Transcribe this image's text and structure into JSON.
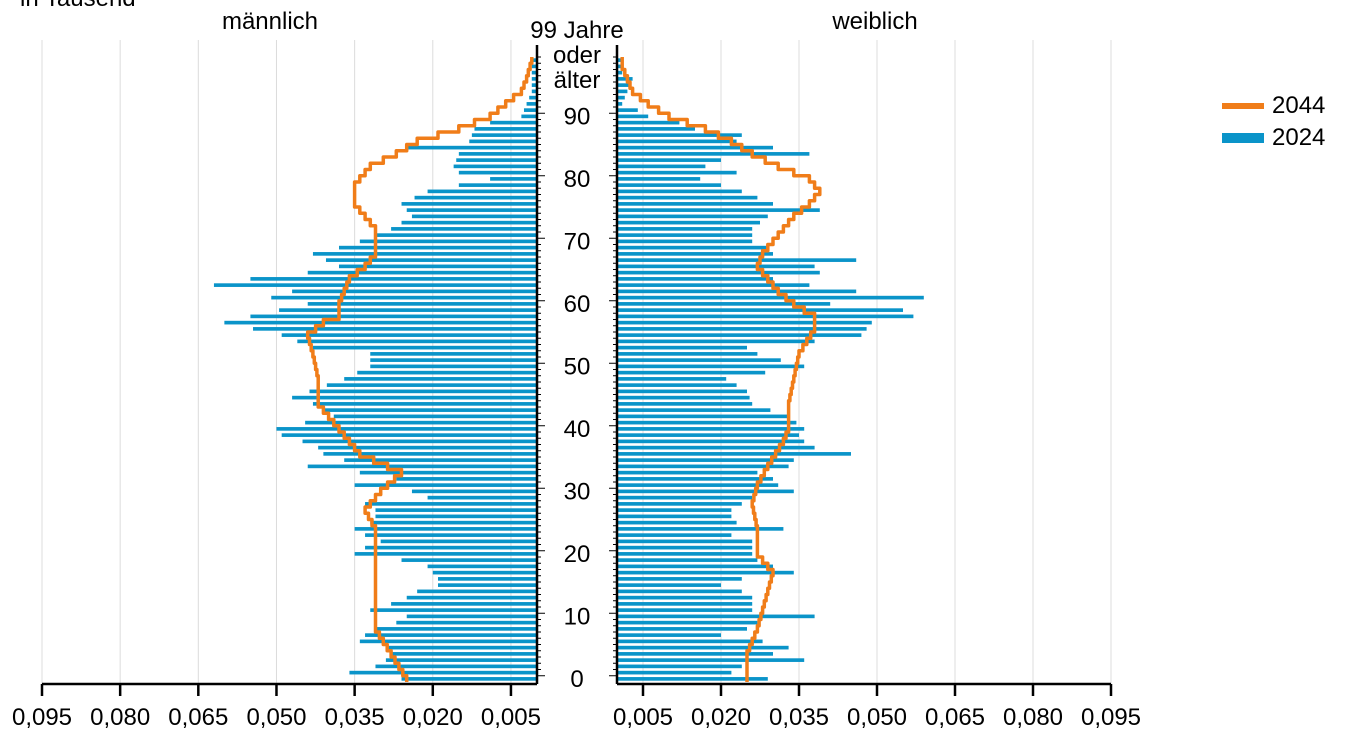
{
  "chart_data": {
    "type": "population_pyramid",
    "unit_label": "in Tausend",
    "left_title": "männlich",
    "right_title": "weiblich",
    "age_top_label": [
      "99 Jahre",
      "oder",
      "älter"
    ],
    "age_ticks": [
      "0",
      "10",
      "20",
      "30",
      "40",
      "50",
      "60",
      "70",
      "80",
      "90"
    ],
    "x_ticks": [
      "0,005",
      "0,020",
      "0,035",
      "0,050",
      "0,065",
      "0,080",
      "0,095"
    ],
    "x_tick_values": [
      0.005,
      0.02,
      0.035,
      0.05,
      0.065,
      0.08,
      0.095
    ],
    "xlim": [
      0,
      0.095
    ],
    "series": [
      {
        "name": "2024",
        "color": "#0a94c9",
        "style": "bars",
        "male_anchors": [
          [
            0,
            0.026
          ],
          [
            1,
            0.036
          ],
          [
            2,
            0.031
          ],
          [
            3,
            0.029
          ],
          [
            4,
            0.028
          ],
          [
            5,
            0.029
          ],
          [
            6,
            0.034
          ],
          [
            7,
            0.033
          ],
          [
            8,
            0.031
          ],
          [
            9,
            0.027
          ],
          [
            10,
            0.025
          ],
          [
            11,
            0.032
          ],
          [
            12,
            0.028
          ],
          [
            13,
            0.025
          ],
          [
            14,
            0.023
          ],
          [
            15,
            0.019
          ],
          [
            16,
            0.019
          ],
          [
            17,
            0.02
          ],
          [
            18,
            0.021
          ],
          [
            19,
            0.026
          ],
          [
            20,
            0.035
          ],
          [
            21,
            0.033
          ],
          [
            22,
            0.03
          ],
          [
            23,
            0.033
          ],
          [
            24,
            0.035
          ],
          [
            25,
            0.032
          ],
          [
            26,
            0.031
          ],
          [
            27,
            0.031
          ],
          [
            28,
            0.033
          ],
          [
            29,
            0.021
          ],
          [
            30,
            0.024
          ],
          [
            31,
            0.035
          ],
          [
            32,
            0.027
          ],
          [
            33,
            0.034
          ],
          [
            34,
            0.044
          ],
          [
            35,
            0.037
          ],
          [
            36,
            0.041
          ],
          [
            37,
            0.042
          ],
          [
            38,
            0.045
          ],
          [
            39,
            0.049
          ],
          [
            40,
            0.05
          ],
          [
            42,
            0.039
          ],
          [
            44,
            0.043
          ],
          [
            45,
            0.047
          ],
          [
            48,
            0.037
          ],
          [
            50,
            0.032
          ],
          [
            52,
            0.032
          ],
          [
            53,
            0.043
          ],
          [
            55,
            0.049
          ],
          [
            57,
            0.06
          ],
          [
            58,
            0.055
          ],
          [
            60,
            0.044
          ],
          [
            61,
            0.051
          ],
          [
            62,
            0.047
          ],
          [
            63,
            0.062
          ],
          [
            64,
            0.055
          ],
          [
            65,
            0.044
          ],
          [
            66,
            0.038
          ],
          [
            68,
            0.043
          ],
          [
            69,
            0.038
          ],
          [
            70,
            0.034
          ],
          [
            72,
            0.028
          ],
          [
            74,
            0.024
          ],
          [
            76,
            0.026
          ],
          [
            78,
            0.021
          ],
          [
            80,
            0.009
          ],
          [
            81,
            0.015
          ],
          [
            82,
            0.016
          ],
          [
            84,
            0.015
          ],
          [
            85,
            0.025
          ],
          [
            86,
            0.013
          ],
          [
            88,
            0.012
          ],
          [
            89,
            0.009
          ],
          [
            90,
            0.003
          ],
          [
            92,
            0.002
          ],
          [
            94,
            0.001
          ],
          [
            96,
            0.001
          ],
          [
            97,
            0.001
          ],
          [
            99,
            0.001
          ]
        ],
        "female_anchors": [
          [
            0,
            0.029
          ],
          [
            1,
            0.022
          ],
          [
            2,
            0.024
          ],
          [
            3,
            0.036
          ],
          [
            4,
            0.03
          ],
          [
            5,
            0.033
          ],
          [
            6,
            0.028
          ],
          [
            7,
            0.02
          ],
          [
            8,
            0.025
          ],
          [
            9,
            0.027
          ],
          [
            10,
            0.038
          ],
          [
            11,
            0.026
          ],
          [
            12,
            0.026
          ],
          [
            13,
            0.026
          ],
          [
            14,
            0.024
          ],
          [
            15,
            0.02
          ],
          [
            16,
            0.024
          ],
          [
            17,
            0.034
          ],
          [
            18,
            0.03
          ],
          [
            19,
            0.027
          ],
          [
            20,
            0.026
          ],
          [
            21,
            0.026
          ],
          [
            22,
            0.026
          ],
          [
            23,
            0.022
          ],
          [
            24,
            0.032
          ],
          [
            25,
            0.023
          ],
          [
            26,
            0.022
          ],
          [
            27,
            0.022
          ],
          [
            28,
            0.024
          ],
          [
            29,
            0.026
          ],
          [
            30,
            0.034
          ],
          [
            31,
            0.031
          ],
          [
            32,
            0.03
          ],
          [
            33,
            0.027
          ],
          [
            34,
            0.033
          ],
          [
            35,
            0.034
          ],
          [
            36,
            0.045
          ],
          [
            37,
            0.038
          ],
          [
            38,
            0.036
          ],
          [
            39,
            0.035
          ],
          [
            40,
            0.036
          ],
          [
            42,
            0.033
          ],
          [
            44,
            0.026
          ],
          [
            46,
            0.025
          ],
          [
            48,
            0.021
          ],
          [
            50,
            0.036
          ],
          [
            52,
            0.027
          ],
          [
            53,
            0.025
          ],
          [
            54,
            0.038
          ],
          [
            55,
            0.047
          ],
          [
            57,
            0.049
          ],
          [
            58,
            0.057
          ],
          [
            59,
            0.055
          ],
          [
            60,
            0.041
          ],
          [
            61,
            0.059
          ],
          [
            62,
            0.046
          ],
          [
            63,
            0.037
          ],
          [
            64,
            0.03
          ],
          [
            65,
            0.039
          ],
          [
            66,
            0.038
          ],
          [
            67,
            0.046
          ],
          [
            68,
            0.03
          ],
          [
            69,
            0.029
          ],
          [
            70,
            0.026
          ],
          [
            72,
            0.026
          ],
          [
            74,
            0.029
          ],
          [
            75,
            0.039
          ],
          [
            76,
            0.03
          ],
          [
            77,
            0.027
          ],
          [
            78,
            0.024
          ],
          [
            80,
            0.016
          ],
          [
            81,
            0.023
          ],
          [
            82,
            0.017
          ],
          [
            83,
            0.02
          ],
          [
            84,
            0.037
          ],
          [
            86,
            0.023
          ],
          [
            87,
            0.024
          ],
          [
            88,
            0.015
          ],
          [
            89,
            0.012
          ],
          [
            90,
            0.006
          ],
          [
            91,
            0.004
          ],
          [
            92,
            0.001
          ],
          [
            94,
            0.002
          ],
          [
            96,
            0.003
          ],
          [
            97,
            0.001
          ],
          [
            99,
            0.001
          ]
        ]
      },
      {
        "name": "2044",
        "color": "#f07d19",
        "style": "step-line",
        "male_anchors": [
          [
            0,
            0.025
          ],
          [
            4,
            0.028
          ],
          [
            8,
            0.031
          ],
          [
            11,
            0.031
          ],
          [
            14,
            0.031
          ],
          [
            18,
            0.031
          ],
          [
            21,
            0.031
          ],
          [
            24,
            0.031
          ],
          [
            27,
            0.033
          ],
          [
            30,
            0.03
          ],
          [
            33,
            0.026
          ],
          [
            36,
            0.034
          ],
          [
            40,
            0.038
          ],
          [
            44,
            0.042
          ],
          [
            48,
            0.042
          ],
          [
            52,
            0.043
          ],
          [
            55,
            0.044
          ],
          [
            57,
            0.041
          ],
          [
            58,
            0.038
          ],
          [
            60,
            0.038
          ],
          [
            62,
            0.037
          ],
          [
            64,
            0.036
          ],
          [
            66,
            0.033
          ],
          [
            68,
            0.031
          ],
          [
            70,
            0.031
          ],
          [
            72,
            0.031
          ],
          [
            74,
            0.033
          ],
          [
            76,
            0.035
          ],
          [
            77,
            0.035
          ],
          [
            79,
            0.035
          ],
          [
            80,
            0.034
          ],
          [
            82,
            0.032
          ],
          [
            84,
            0.027
          ],
          [
            86,
            0.023
          ],
          [
            88,
            0.015
          ],
          [
            90,
            0.009
          ],
          [
            92,
            0.006
          ],
          [
            94,
            0.003
          ],
          [
            96,
            0.002
          ],
          [
            99,
            0.001
          ]
        ],
        "female_anchors": [
          [
            0,
            0.025
          ],
          [
            4,
            0.025
          ],
          [
            8,
            0.027
          ],
          [
            11,
            0.028
          ],
          [
            14,
            0.029
          ],
          [
            17,
            0.03
          ],
          [
            20,
            0.027
          ],
          [
            24,
            0.027
          ],
          [
            28,
            0.026
          ],
          [
            31,
            0.027
          ],
          [
            34,
            0.029
          ],
          [
            38,
            0.032
          ],
          [
            40,
            0.033
          ],
          [
            44,
            0.033
          ],
          [
            48,
            0.034
          ],
          [
            52,
            0.035
          ],
          [
            56,
            0.038
          ],
          [
            58,
            0.038
          ],
          [
            60,
            0.034
          ],
          [
            62,
            0.031
          ],
          [
            64,
            0.029
          ],
          [
            66,
            0.027
          ],
          [
            68,
            0.028
          ],
          [
            70,
            0.03
          ],
          [
            72,
            0.032
          ],
          [
            74,
            0.034
          ],
          [
            76,
            0.037
          ],
          [
            78,
            0.039
          ],
          [
            80,
            0.037
          ],
          [
            82,
            0.031
          ],
          [
            84,
            0.026
          ],
          [
            86,
            0.022
          ],
          [
            88,
            0.017
          ],
          [
            90,
            0.01
          ],
          [
            92,
            0.006
          ],
          [
            94,
            0.003
          ],
          [
            96,
            0.002
          ],
          [
            98,
            0.001
          ],
          [
            99,
            0.001
          ]
        ]
      }
    ],
    "legend_position": "top-right",
    "grid": true
  }
}
